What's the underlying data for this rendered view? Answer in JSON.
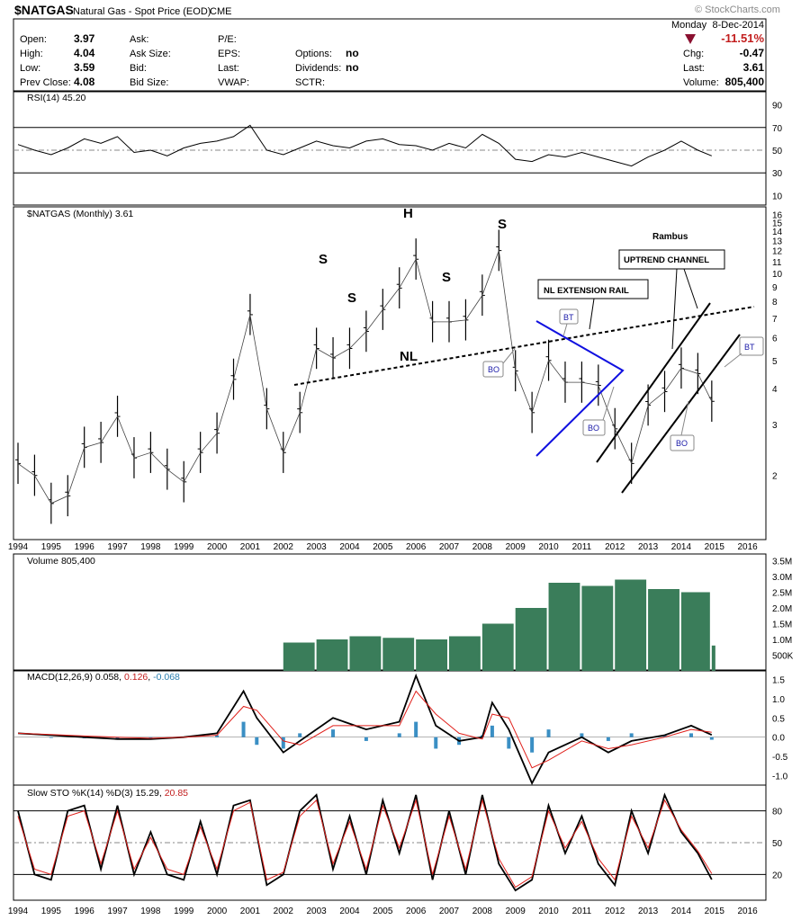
{
  "header": {
    "symbol": "$NATGAS",
    "description": "Natural Gas - Spot Price (EOD)",
    "exchange": "CME",
    "brand": "© StockCharts.com",
    "day": "Monday",
    "date": "8-Dec-2014",
    "pct_change": "-11.51%",
    "chg_label": "Chg:",
    "chg": "-0.47",
    "last_label": "Last:",
    "last": "3.61",
    "volume_label": "Volume:",
    "volume": "805,400"
  },
  "quote": {
    "open_label": "Open:",
    "open": "3.97",
    "high_label": "High:",
    "high": "4.04",
    "low_label": "Low:",
    "low": "3.59",
    "prevclose_label": "Prev Close:",
    "prevclose": "4.08",
    "ask_label": "Ask:",
    "asksize_label": "Ask Size:",
    "bid_label": "Bid:",
    "bidsize_label": "Bid Size:",
    "pe_label": "P/E:",
    "eps_label": "EPS:",
    "last_label": "Last:",
    "vwap_label": "VWAP:",
    "options_label": "Options:",
    "options": "no",
    "dividends_label": "Dividends:",
    "dividends": "no",
    "sctr_label": "SCTR:"
  },
  "colors": {
    "price": "#000000",
    "volume": "#3a7d5a",
    "macd_hist": "#3a8fc4",
    "signal": "#e0201b",
    "rsi": "#000000",
    "trendline_blue": "#1010e0",
    "down_arrow": "#8a1030",
    "pct_down": "#c21d1d",
    "macd_signal_label": "#c21d1d",
    "macd_hist_label": "#2a7fb0"
  },
  "chart_data": [
    {
      "type": "line",
      "title": "RSI(14) 45.20",
      "x": [
        1994.0,
        1994.5,
        1995.0,
        1995.5,
        1996.0,
        1996.5,
        1997.0,
        1997.5,
        1998.0,
        1998.5,
        1999.0,
        1999.5,
        2000.0,
        2000.5,
        2001.0,
        2001.5,
        2002.0,
        2002.5,
        2003.0,
        2003.5,
        2004.0,
        2004.5,
        2005.0,
        2005.5,
        2006.0,
        2006.5,
        2007.0,
        2007.5,
        2008.0,
        2008.5,
        2009.0,
        2009.5,
        2010.0,
        2010.5,
        2011.0,
        2011.5,
        2012.0,
        2012.5,
        2013.0,
        2013.5,
        2014.0,
        2014.5,
        2014.92
      ],
      "values": [
        55,
        50,
        46,
        52,
        60,
        56,
        62,
        48,
        50,
        45,
        52,
        56,
        58,
        62,
        72,
        50,
        46,
        52,
        58,
        54,
        52,
        58,
        60,
        55,
        54,
        50,
        56,
        52,
        64,
        56,
        42,
        40,
        46,
        44,
        48,
        44,
        40,
        36,
        44,
        50,
        58,
        50,
        45
      ],
      "ylim": [
        0,
        100
      ],
      "ticks": [
        10,
        30,
        50,
        70,
        90
      ],
      "ref_lines": [
        30,
        50,
        70
      ]
    },
    {
      "type": "bar",
      "title": "$NATGAS (Monthly) 3.61",
      "scale": "log",
      "ylim": [
        1.2,
        17
      ],
      "y_ticks": [
        2,
        3,
        4,
        5,
        6,
        7,
        8,
        9,
        10,
        11,
        12,
        13,
        14,
        15,
        16
      ],
      "x_range": [
        1994,
        2016.2
      ],
      "x_ticks": [
        "1994",
        "1995",
        "1996",
        "1997",
        "1998",
        "1999",
        "2000",
        "2001",
        "2002",
        "2003",
        "2004",
        "2005",
        "2006",
        "2007",
        "2008",
        "2009",
        "2010",
        "2011",
        "2012",
        "2013",
        "2014",
        "2015",
        "2016"
      ],
      "x": [
        1994.0,
        1994.5,
        1995.0,
        1995.5,
        1996.0,
        1996.5,
        1997.0,
        1997.5,
        1998.0,
        1998.5,
        1999.0,
        1999.5,
        2000.0,
        2000.5,
        2001.0,
        2001.5,
        2002.0,
        2002.5,
        2003.0,
        2003.5,
        2004.0,
        2004.5,
        2005.0,
        2005.5,
        2006.0,
        2006.5,
        2007.0,
        2007.5,
        2008.0,
        2008.5,
        2009.0,
        2009.5,
        2010.0,
        2010.5,
        2011.0,
        2011.5,
        2012.0,
        2012.5,
        2013.0,
        2013.5,
        2014.0,
        2014.5,
        2014.92
      ],
      "values": [
        2.2,
        2.0,
        1.6,
        1.7,
        2.5,
        2.6,
        3.2,
        2.3,
        2.4,
        2.1,
        1.9,
        2.4,
        2.8,
        4.3,
        7.2,
        3.4,
        2.4,
        3.3,
        5.5,
        5.1,
        5.5,
        6.3,
        7.5,
        8.9,
        11.2,
        6.8,
        6.8,
        6.9,
        8.4,
        12.0,
        4.6,
        3.3,
        5.0,
        4.2,
        4.2,
        4.1,
        2.9,
        2.2,
        3.5,
        3.9,
        4.7,
        4.5,
        3.61
      ],
      "annotations": [
        "S",
        "S",
        "H",
        "S",
        "S",
        "NL",
        "NL EXTENSION RAIL",
        "UPTREND CHANNEL",
        "Rambus",
        "BT",
        "BO",
        "BO",
        "BO",
        "BT"
      ]
    },
    {
      "type": "bar",
      "title": "Volume 805,400",
      "ylim": [
        0,
        3600000
      ],
      "y_ticks": [
        "500K",
        "1.0M",
        "1.5M",
        "2.0M",
        "2.5M",
        "3.0M",
        "3.5M"
      ],
      "y_tick_values": [
        500000,
        1000000,
        1500000,
        2000000,
        2500000,
        3000000,
        3500000
      ],
      "x": [
        2002.0,
        2003.0,
        2004.0,
        2005.0,
        2006.0,
        2007.0,
        2008.0,
        2009.0,
        2010.0,
        2011.0,
        2012.0,
        2013.0,
        2014.0,
        2014.92
      ],
      "values": [
        900000,
        1000000,
        1100000,
        1050000,
        1000000,
        1100000,
        1500000,
        2000000,
        2800000,
        2700000,
        2900000,
        2600000,
        2500000,
        805400
      ]
    },
    {
      "type": "line",
      "title": "MACD(12,26,9)",
      "macd_label": "0.058",
      "signal_label": "0.126",
      "hist_label": "-0.068",
      "ylim": [
        -1.25,
        1.75
      ],
      "y_ticks": [
        -1.0,
        -0.5,
        0.0,
        0.5,
        1.0,
        1.5
      ],
      "x": [
        1994.0,
        1995.0,
        1996.0,
        1997.0,
        1998.0,
        1999.0,
        2000.0,
        2000.8,
        2001.2,
        2002.0,
        2002.5,
        2003.5,
        2004.5,
        2005.5,
        2006.0,
        2006.6,
        2007.3,
        2008.0,
        2008.3,
        2008.8,
        2009.5,
        2010.0,
        2011.0,
        2011.8,
        2012.5,
        2013.5,
        2014.3,
        2014.92
      ],
      "series": [
        {
          "name": "MACD",
          "values": [
            0.1,
            0.05,
            0.0,
            -0.05,
            -0.05,
            0.0,
            0.1,
            1.2,
            0.5,
            -0.4,
            -0.1,
            0.5,
            0.2,
            0.4,
            1.6,
            0.3,
            -0.1,
            0.0,
            0.9,
            0.2,
            -1.2,
            -0.4,
            0.0,
            -0.4,
            -0.1,
            0.05,
            0.3,
            0.058
          ]
        },
        {
          "name": "Signal",
          "values": [
            0.1,
            0.07,
            0.03,
            0.0,
            -0.03,
            0.0,
            0.05,
            0.8,
            0.7,
            -0.1,
            -0.2,
            0.3,
            0.3,
            0.3,
            1.2,
            0.6,
            0.1,
            -0.05,
            0.6,
            0.5,
            -0.8,
            -0.6,
            -0.1,
            -0.3,
            -0.2,
            0.0,
            0.2,
            0.126
          ]
        }
      ]
    },
    {
      "type": "line",
      "title": "Slow STO %K(14) %D(3)",
      "k_label": "15.29",
      "d_label": "20.85",
      "ylim": [
        0,
        100
      ],
      "y_ticks": [
        20,
        50,
        80
      ],
      "ref_lines": [
        20,
        50,
        80
      ],
      "x": [
        1994.0,
        1994.5,
        1995.0,
        1995.5,
        1996.0,
        1996.5,
        1997.0,
        1997.5,
        1998.0,
        1998.5,
        1999.0,
        1999.5,
        2000.0,
        2000.5,
        2001.0,
        2001.5,
        2002.0,
        2002.5,
        2003.0,
        2003.5,
        2004.0,
        2004.5,
        2005.0,
        2005.5,
        2006.0,
        2006.5,
        2007.0,
        2007.5,
        2008.0,
        2008.5,
        2009.0,
        2009.5,
        2010.0,
        2010.5,
        2011.0,
        2011.5,
        2012.0,
        2012.5,
        2013.0,
        2013.5,
        2014.0,
        2014.5,
        2014.92
      ],
      "series": [
        {
          "name": "%K",
          "values": [
            80,
            20,
            15,
            80,
            85,
            25,
            85,
            20,
            60,
            20,
            15,
            70,
            20,
            85,
            90,
            10,
            20,
            80,
            95,
            25,
            75,
            20,
            90,
            40,
            95,
            15,
            80,
            20,
            95,
            30,
            5,
            15,
            85,
            40,
            75,
            30,
            10,
            80,
            40,
            95,
            60,
            40,
            15.29
          ]
        },
        {
          "name": "%D",
          "values": [
            75,
            25,
            20,
            75,
            80,
            30,
            80,
            25,
            55,
            25,
            20,
            65,
            25,
            80,
            88,
            15,
            22,
            75,
            90,
            30,
            70,
            25,
            85,
            45,
            90,
            20,
            75,
            25,
            90,
            35,
            8,
            18,
            80,
            45,
            70,
            35,
            15,
            75,
            45,
            90,
            62,
            42,
            20.85
          ]
        }
      ]
    }
  ]
}
